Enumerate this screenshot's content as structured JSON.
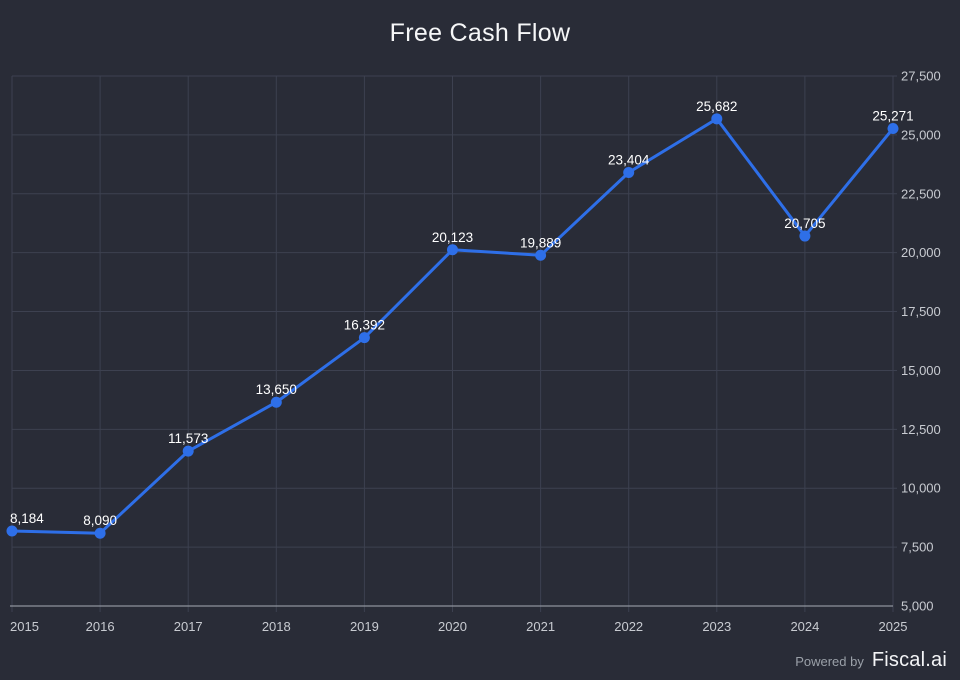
{
  "page": {
    "background": "#292c37"
  },
  "chart_data": {
    "type": "line",
    "title": "Free Cash Flow",
    "categories": [
      "2015",
      "2016",
      "2017",
      "2018",
      "2019",
      "2020",
      "2021",
      "2022",
      "2023",
      "2024",
      "2025"
    ],
    "series": [
      {
        "name": "Free Cash Flow",
        "values": [
          8184,
          8090,
          11573,
          13650,
          16392,
          20123,
          19889,
          23404,
          25682,
          20705,
          25271
        ]
      }
    ],
    "point_labels": [
      "8,184",
      "8,090",
      "11,573",
      "13,650",
      "16,392",
      "20,123",
      "19,889",
      "23,404",
      "25,682",
      "20,705",
      "25,271"
    ],
    "xlabel": "",
    "ylabel": "",
    "ylim": [
      5000,
      27500
    ],
    "ytick_step": 2500,
    "ytick_labels": [
      "5,000",
      "7,500",
      "10,000",
      "12,500",
      "15,000",
      "17,500",
      "20,000",
      "22,500",
      "25,000",
      "27,500"
    ],
    "yaxis_side": "right",
    "grid": true,
    "legend_position": "none",
    "colors": {
      "line": "#2e6fe8",
      "marker": "#2e6fe8",
      "grid": "#3d4150",
      "axis_line": "#8f939c",
      "point_label": "#ffffff",
      "tick_label": "#c8cbd1"
    }
  },
  "footer": {
    "powered_by": "Powered by",
    "brand": "Fiscal.ai"
  }
}
